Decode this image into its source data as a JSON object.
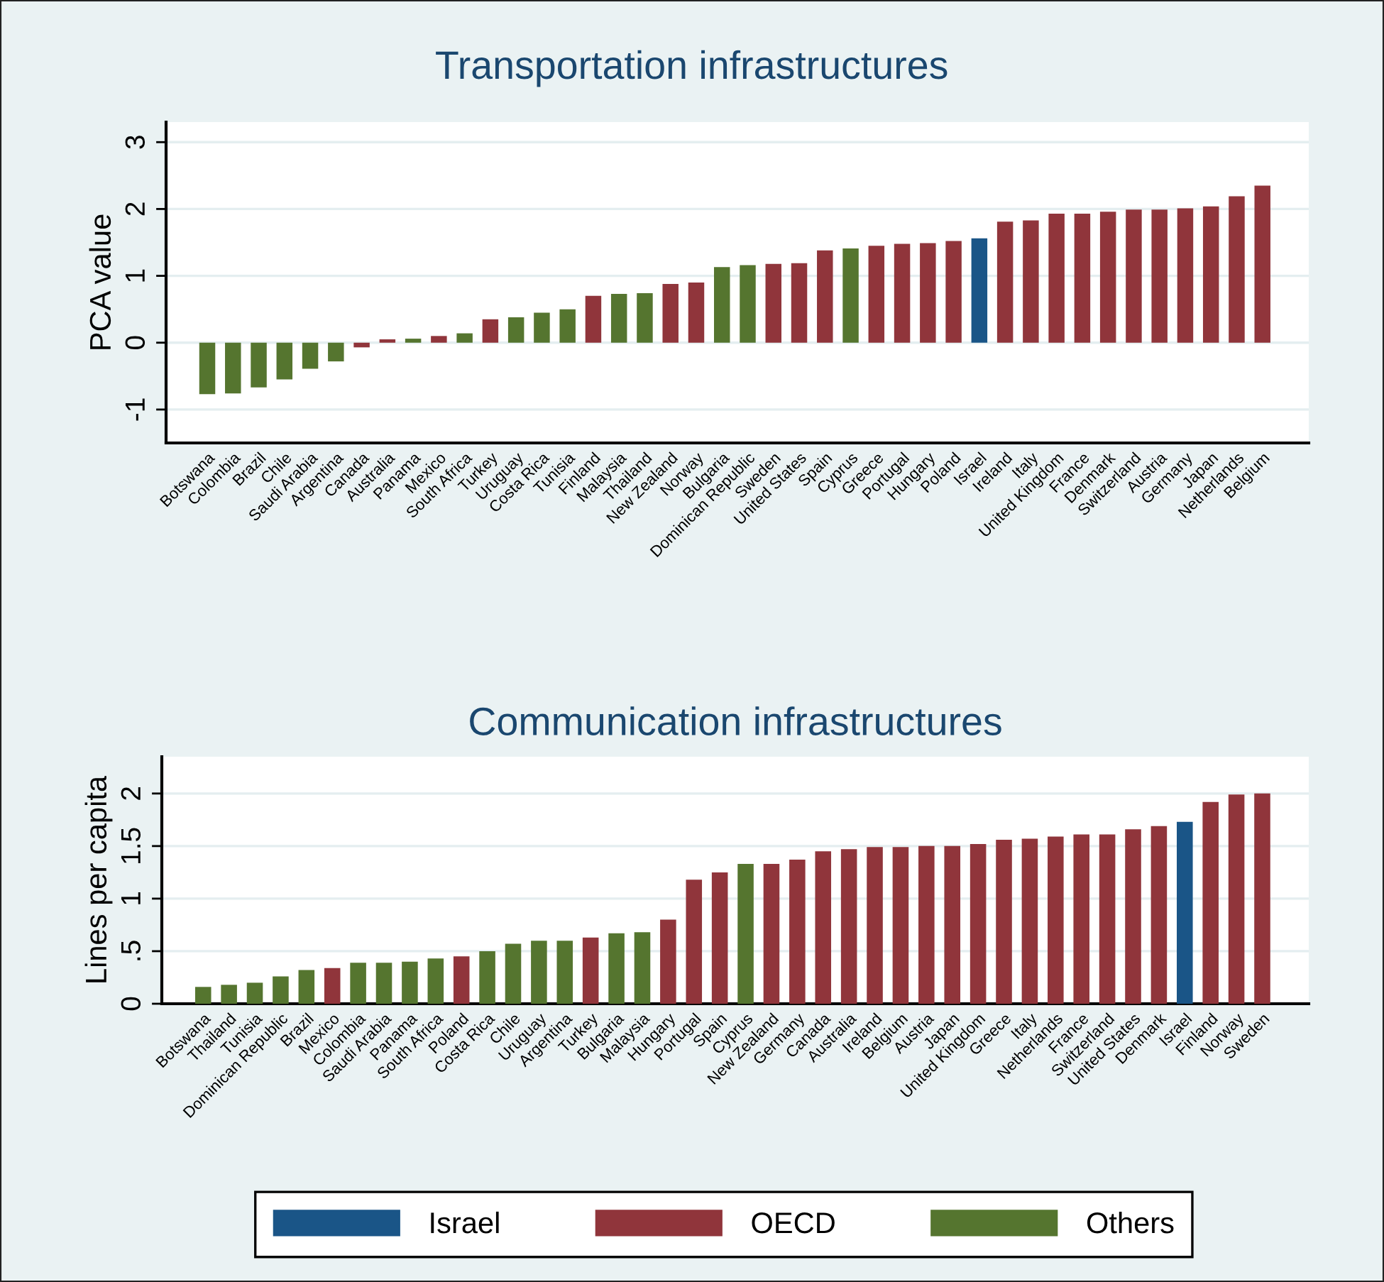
{
  "chart_data": [
    {
      "type": "bar",
      "title": "Transportation infrastructures",
      "ylabel": "PCA value",
      "categories": [
        "Botswana",
        "Colombia",
        "Brazil",
        "Chile",
        "Saudi Arabia",
        "Argentina",
        "Canada",
        "Australia",
        "Panama",
        "Mexico",
        "South Africa",
        "Turkey",
        "Uruguay",
        "Costa Rica",
        "Tunisia",
        "Finland",
        "Malaysia",
        "Thailand",
        "New Zealand",
        "Norway",
        "Bulgaria",
        "Dominican Republic",
        "Sweden",
        "United States",
        "Spain",
        "Cyprus",
        "Greece",
        "Portugal",
        "Hungary",
        "Poland",
        "Israel",
        "Ireland",
        "Italy",
        "United Kingdom",
        "France",
        "Denmark",
        "Switzerland",
        "Austria",
        "Germany",
        "Japan",
        "Netherlands",
        "Belgium"
      ],
      "series": [
        {
          "color": "#1a5587",
          "values": [
            null,
            null,
            null,
            null,
            null,
            null,
            null,
            null,
            null,
            null,
            null,
            null,
            null,
            null,
            null,
            null,
            null,
            null,
            null,
            null,
            null,
            null,
            null,
            null,
            null,
            null,
            null,
            null,
            null,
            null,
            1.56,
            null,
            null,
            null,
            null,
            null,
            null,
            null,
            null,
            null,
            null,
            null
          ]
        },
        {
          "color": "#90353b",
          "values": [
            null,
            null,
            null,
            null,
            null,
            null,
            -0.07,
            0.05,
            null,
            0.1,
            null,
            0.35,
            null,
            null,
            null,
            0.7,
            null,
            null,
            0.88,
            0.9,
            null,
            null,
            1.18,
            1.19,
            1.38,
            null,
            1.45,
            1.48,
            1.49,
            1.52,
            null,
            1.81,
            1.83,
            1.93,
            1.93,
            1.96,
            1.99,
            1.99,
            2.01,
            2.04,
            2.19,
            2.35
          ]
        },
        {
          "color": "#55752f",
          "values": [
            -0.77,
            -0.76,
            -0.67,
            -0.55,
            -0.39,
            -0.28,
            null,
            null,
            0.06,
            null,
            0.14,
            null,
            0.38,
            0.45,
            0.5,
            null,
            0.73,
            0.74,
            null,
            null,
            1.13,
            1.16,
            null,
            null,
            null,
            1.41,
            null,
            null,
            null,
            null,
            null,
            null,
            null,
            null,
            null,
            null,
            null,
            null,
            null,
            null,
            null,
            null
          ]
        }
      ],
      "ylim": [
        -1.5,
        3.3
      ],
      "yticks": [
        -1,
        0,
        1,
        2,
        3
      ],
      "grid": "y"
    },
    {
      "type": "bar",
      "title": "Communication infrastructures",
      "ylabel": "Lines per capita",
      "categories": [
        "Botswana",
        "Thailand",
        "Tunisia",
        "Dominican Republic",
        "Brazil",
        "Mexico",
        "Colombia",
        "Saudi Arabia",
        "Panama",
        "South Africa",
        "Poland",
        "Costa Rica",
        "Chile",
        "Uruguay",
        "Argentina",
        "Turkey",
        "Bulgaria",
        "Malaysia",
        "Hungary",
        "Portugal",
        "Spain",
        "Cyprus",
        "New Zealand",
        "Germany",
        "Canada",
        "Australia",
        "Ireland",
        "Belgium",
        "Austria",
        "Japan",
        "United Kingdom",
        "Greece",
        "Italy",
        "Netherlands",
        "France",
        "Switzerland",
        "United States",
        "Denmark",
        "Israel",
        "Finland",
        "Norway",
        "Sweden"
      ],
      "series": [
        {
          "name": "Israel",
          "color": "#1a5587",
          "values": [
            null,
            null,
            null,
            null,
            null,
            null,
            null,
            null,
            null,
            null,
            null,
            null,
            null,
            null,
            null,
            null,
            null,
            null,
            null,
            null,
            null,
            null,
            null,
            null,
            null,
            null,
            null,
            null,
            null,
            null,
            null,
            null,
            null,
            null,
            null,
            null,
            null,
            null,
            1.73,
            null,
            null,
            null
          ]
        },
        {
          "name": "OECD",
          "color": "#90353b",
          "values": [
            null,
            null,
            null,
            null,
            null,
            0.34,
            null,
            null,
            null,
            null,
            0.45,
            null,
            null,
            null,
            null,
            0.63,
            null,
            null,
            0.8,
            1.18,
            1.25,
            null,
            1.33,
            1.37,
            1.45,
            1.47,
            1.49,
            1.49,
            1.5,
            1.5,
            1.52,
            1.56,
            1.57,
            1.59,
            1.61,
            1.61,
            1.66,
            1.69,
            null,
            1.92,
            1.99,
            2.0
          ]
        },
        {
          "name": "Others",
          "color": "#55752f",
          "values": [
            0.16,
            0.18,
            0.2,
            0.26,
            0.32,
            null,
            0.39,
            0.39,
            0.4,
            0.43,
            null,
            0.5,
            0.57,
            0.6,
            0.6,
            null,
            0.67,
            0.68,
            null,
            null,
            null,
            1.33,
            null,
            null,
            null,
            null,
            null,
            null,
            null,
            null,
            null,
            null,
            null,
            null,
            null,
            null,
            null,
            null,
            null,
            null,
            null,
            null
          ]
        }
      ],
      "ylim": [
        0,
        2.35
      ],
      "yticks": [
        0,
        {
          "value": 0.5,
          "label": ".5"
        },
        1,
        1.5,
        2
      ],
      "grid": "y",
      "legend": "bottom"
    }
  ]
}
